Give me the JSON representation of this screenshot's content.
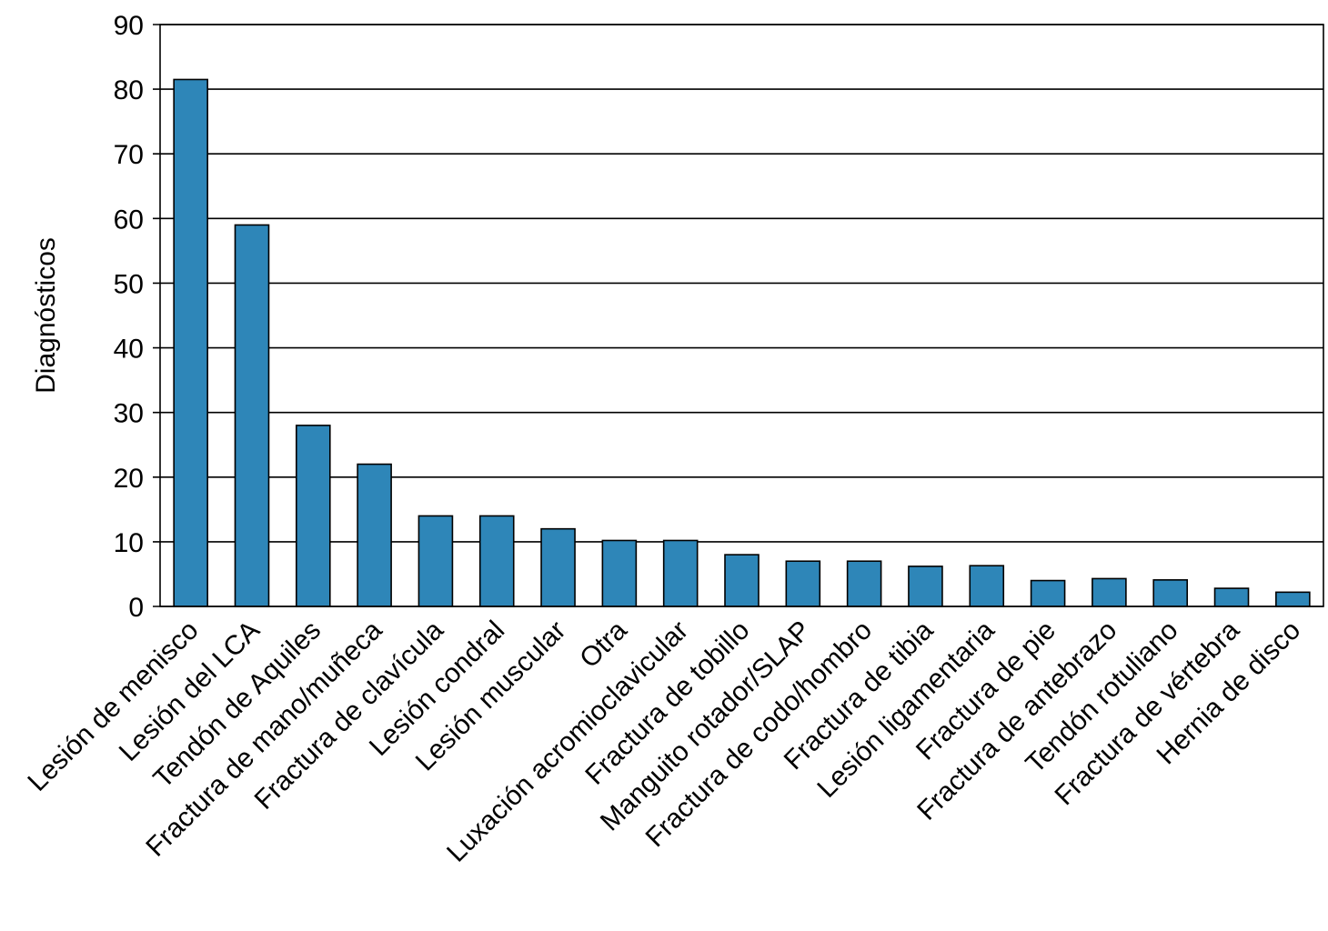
{
  "chart_data": {
    "type": "bar",
    "title": "",
    "xlabel": "",
    "ylabel": "Diagnósticos",
    "ylim": [
      0,
      90
    ],
    "yticks": [
      0,
      10,
      20,
      30,
      40,
      50,
      60,
      70,
      80,
      90
    ],
    "grid": true,
    "bar_color": "#2E86B8",
    "categories": [
      "Lesión de menisco",
      "Lesión del LCA",
      "Tendón de Aquiles",
      "Fractura de mano/muñeca",
      "Fractura de clavícula",
      "Lesión condral",
      "Lesión muscular",
      "Otra",
      "Luxación acromioclavicular",
      "Fractura de tobillo",
      "Manguito rotador/SLAP",
      "Fractura de codo/hombro",
      "Fractura de tibia",
      "Lesión ligamentaria",
      "Fractura de pie",
      "Fractura de antebrazo",
      "Tendón rotuliano",
      "Fractura de vértebra",
      "Hernia de disco"
    ],
    "values": [
      81.5,
      59,
      28,
      22,
      14,
      14,
      12,
      10.2,
      10.2,
      8,
      7,
      7,
      6.2,
      6.3,
      4,
      4.3,
      4.1,
      2.8,
      2.2
    ]
  }
}
